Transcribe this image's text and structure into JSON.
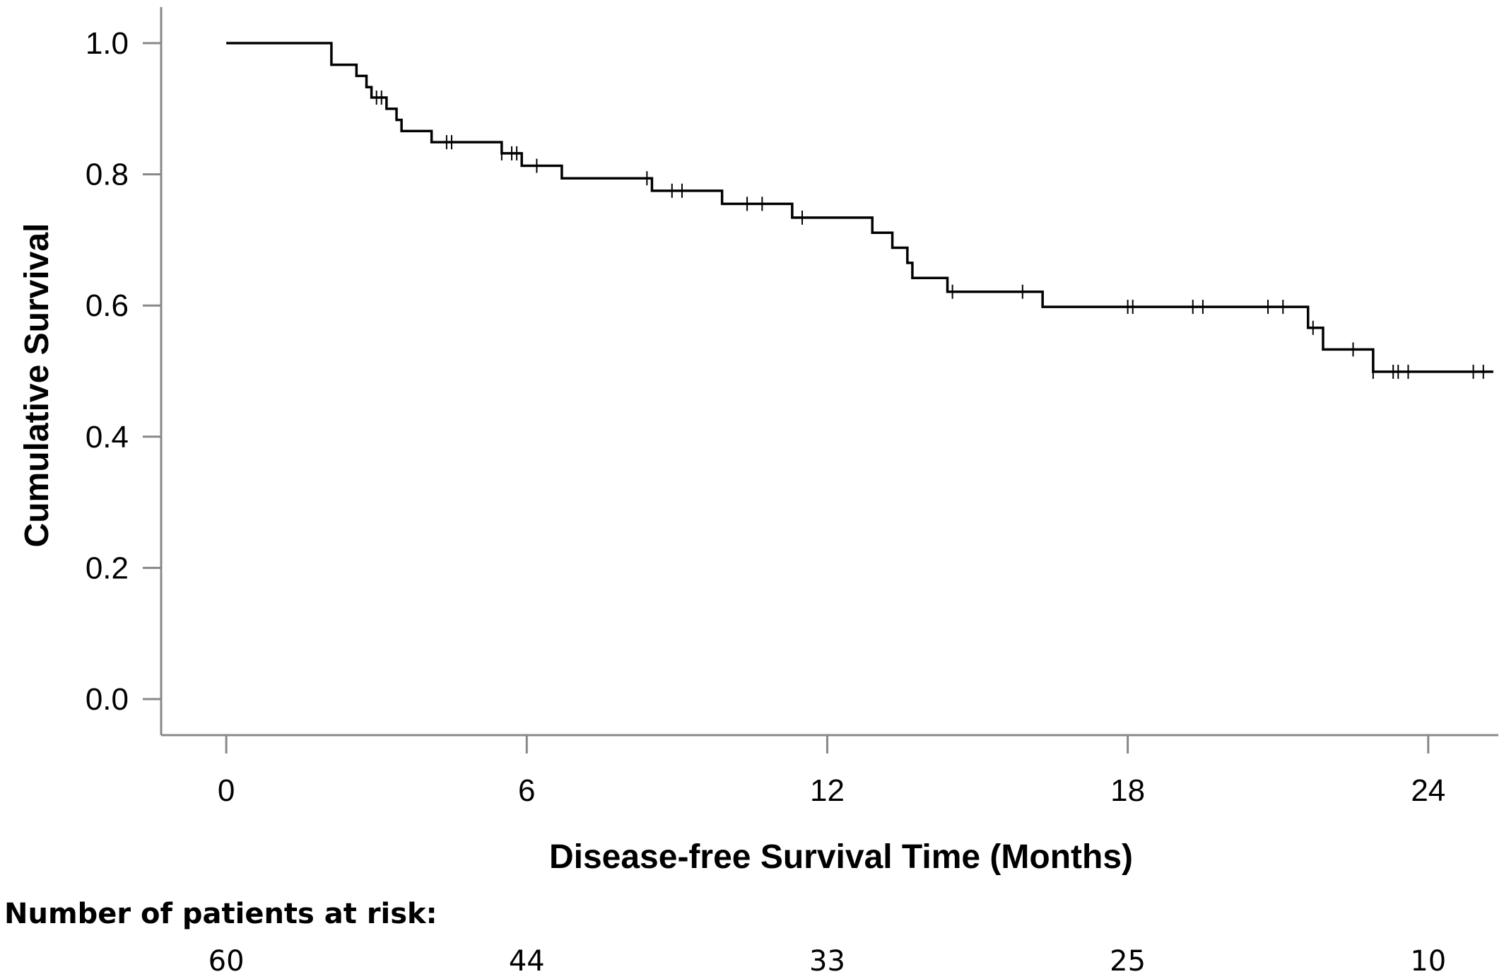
{
  "chart_data": {
    "type": "line",
    "subtype": "kaplan-meier step",
    "title": "",
    "xlabel": "Disease-free Survival Time (Months)",
    "ylabel": "Cumulative Survival",
    "xlim": [
      -1.3,
      25.4
    ],
    "ylim": [
      -0.055,
      1.055
    ],
    "x_ticks": [
      0,
      6,
      12,
      18,
      24
    ],
    "x_tick_labels": [
      "0",
      "6",
      "12",
      "18",
      "24"
    ],
    "y_ticks": [
      0.0,
      0.2,
      0.4,
      0.6,
      0.8,
      1.0
    ],
    "y_tick_labels": [
      "0.0",
      "0.2",
      "0.4",
      "0.6",
      "0.8",
      "1.0"
    ],
    "grid": false,
    "legend": "none",
    "line_color": "#000000",
    "axis_color": "#888888",
    "series": [
      {
        "steps": [
          {
            "x": 0.0,
            "y": 1.0
          },
          {
            "x": 2.1,
            "y": 0.967
          },
          {
            "x": 2.6,
            "y": 0.95
          },
          {
            "x": 2.8,
            "y": 0.933
          },
          {
            "x": 2.9,
            "y": 0.917
          },
          {
            "x": 3.2,
            "y": 0.9
          },
          {
            "x": 3.4,
            "y": 0.883
          },
          {
            "x": 3.5,
            "y": 0.866
          },
          {
            "x": 4.1,
            "y": 0.849
          },
          {
            "x": 5.5,
            "y": 0.832
          },
          {
            "x": 5.9,
            "y": 0.813
          },
          {
            "x": 6.7,
            "y": 0.794
          },
          {
            "x": 8.5,
            "y": 0.775
          },
          {
            "x": 9.9,
            "y": 0.755
          },
          {
            "x": 11.3,
            "y": 0.734
          },
          {
            "x": 12.9,
            "y": 0.711
          },
          {
            "x": 13.3,
            "y": 0.688
          },
          {
            "x": 13.6,
            "y": 0.665
          },
          {
            "x": 13.7,
            "y": 0.642
          },
          {
            "x": 14.4,
            "y": 0.621
          },
          {
            "x": 16.3,
            "y": 0.598
          },
          {
            "x": 21.6,
            "y": 0.566
          },
          {
            "x": 21.9,
            "y": 0.533
          },
          {
            "x": 22.9,
            "y": 0.499
          }
        ],
        "end_x": 25.3,
        "censored": [
          {
            "x": 3.0,
            "y": 0.917
          },
          {
            "x": 3.1,
            "y": 0.917
          },
          {
            "x": 4.4,
            "y": 0.849
          },
          {
            "x": 4.5,
            "y": 0.849
          },
          {
            "x": 5.5,
            "y": 0.832
          },
          {
            "x": 5.7,
            "y": 0.832
          },
          {
            "x": 5.8,
            "y": 0.832
          },
          {
            "x": 6.2,
            "y": 0.813
          },
          {
            "x": 8.4,
            "y": 0.794
          },
          {
            "x": 8.9,
            "y": 0.775
          },
          {
            "x": 9.1,
            "y": 0.775
          },
          {
            "x": 10.4,
            "y": 0.755
          },
          {
            "x": 10.7,
            "y": 0.755
          },
          {
            "x": 11.5,
            "y": 0.734
          },
          {
            "x": 14.5,
            "y": 0.621
          },
          {
            "x": 15.9,
            "y": 0.621
          },
          {
            "x": 18.0,
            "y": 0.598
          },
          {
            "x": 18.1,
            "y": 0.598
          },
          {
            "x": 19.3,
            "y": 0.598
          },
          {
            "x": 19.5,
            "y": 0.598
          },
          {
            "x": 20.8,
            "y": 0.598
          },
          {
            "x": 21.1,
            "y": 0.598
          },
          {
            "x": 21.7,
            "y": 0.566
          },
          {
            "x": 22.5,
            "y": 0.533
          },
          {
            "x": 22.9,
            "y": 0.499
          },
          {
            "x": 23.3,
            "y": 0.499
          },
          {
            "x": 23.4,
            "y": 0.499
          },
          {
            "x": 23.6,
            "y": 0.499
          },
          {
            "x": 24.9,
            "y": 0.499
          },
          {
            "x": 25.1,
            "y": 0.499
          }
        ]
      }
    ],
    "at_risk": {
      "title": "Number of patients at risk:",
      "x": [
        0,
        6,
        12,
        18,
        24
      ],
      "labels": [
        "60",
        "44",
        "33",
        "25",
        "10"
      ]
    }
  }
}
